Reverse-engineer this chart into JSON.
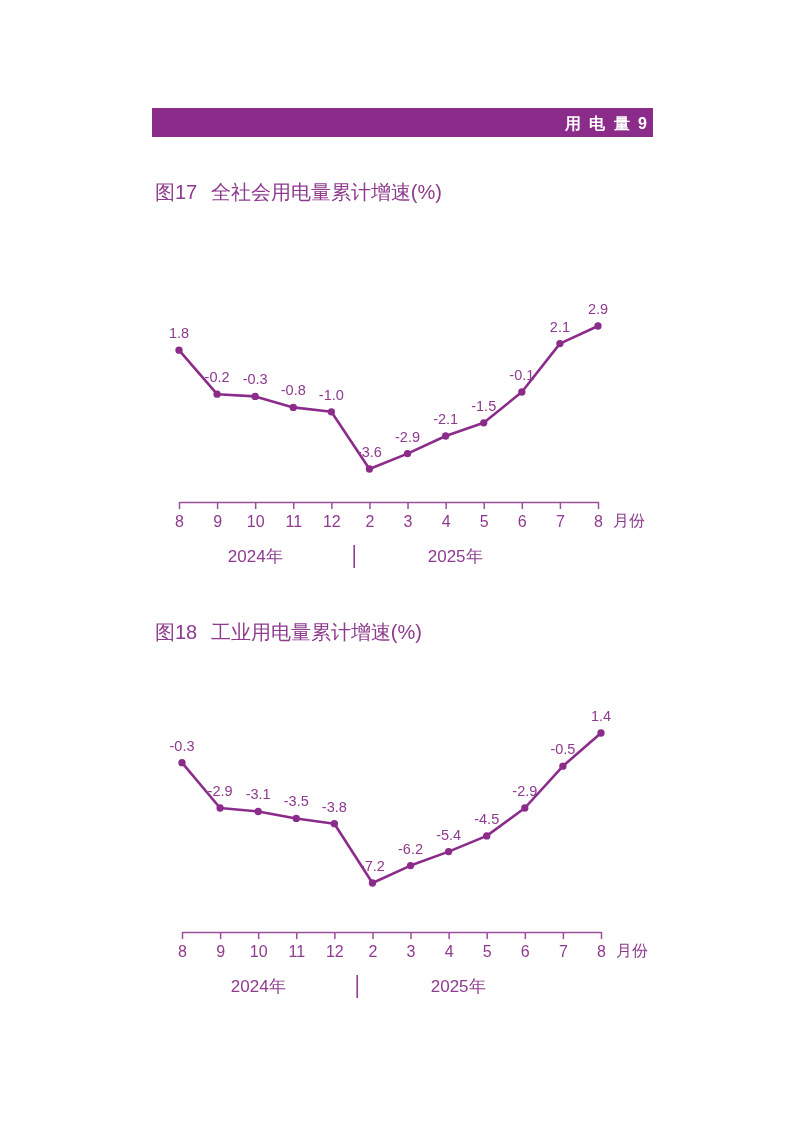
{
  "chart_data": [
    {
      "type": "other",
      "title": "用 电 量 9"
    },
    {
      "type": "line",
      "title": "图17 全社会用电量累计增速(%)",
      "xlabel": "月份",
      "categories": [
        "8",
        "9",
        "10",
        "11",
        "12",
        "2",
        "3",
        "4",
        "5",
        "6",
        "7",
        "8"
      ],
      "values": [
        1.8,
        -0.2,
        -0.3,
        -0.8,
        -1.0,
        -3.6,
        -2.9,
        -2.1,
        -1.5,
        -0.1,
        2.1,
        2.9
      ],
      "value_labels": [
        "1.8",
        "-0.2",
        "-0.3",
        "-0.8",
        "-1.0",
        "-3.6",
        "-2.9",
        "-2.1",
        "-1.5",
        "-0.1",
        "2.1",
        "2.9"
      ],
      "color": "#8b2c8b",
      "marker": "circle",
      "line_style": "solid",
      "tick_labels": "x",
      "annotations": [
        "2024年",
        "2025年"
      ]
    },
    {
      "type": "line",
      "title": "图18 工业用电量累计增速(%)",
      "xlabel": "月份",
      "categories": [
        "8",
        "9",
        "10",
        "11",
        "12",
        "2",
        "3",
        "4",
        "5",
        "6",
        "7",
        "8"
      ],
      "values": [
        -0.3,
        -2.9,
        -3.1,
        -3.5,
        -3.8,
        -7.2,
        -6.2,
        -5.4,
        -4.5,
        -2.9,
        -0.5,
        1.4
      ],
      "value_labels": [
        "-0.3",
        "-2.9",
        "-3.1",
        "-3.5",
        "-3.8",
        "-7.2",
        "-6.2",
        "-5.4",
        "-4.5",
        "-2.9",
        "-0.5",
        "1.4"
      ],
      "color": "#8b2c8b",
      "marker": "circle",
      "line_style": "solid",
      "tick_labels": "x",
      "annotations": [
        "2024年",
        "2025年"
      ]
    }
  ]
}
